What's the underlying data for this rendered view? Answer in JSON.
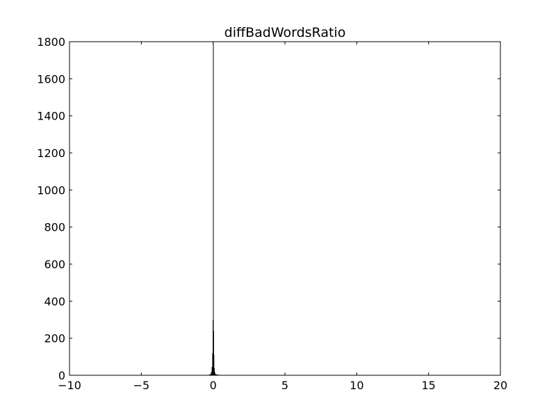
{
  "chart_data": {
    "type": "bar",
    "title": "diffBadWordsRatio",
    "xlabel": "",
    "ylabel": "",
    "xlim": [
      -10,
      20
    ],
    "ylim": [
      0,
      1800
    ],
    "xticks": [
      -10,
      -5,
      0,
      5,
      10,
      15,
      20
    ],
    "xtick_labels": [
      "−10",
      "−5",
      "0",
      "5",
      "10",
      "15",
      "20"
    ],
    "yticks": [
      0,
      200,
      400,
      600,
      800,
      1000,
      1200,
      1400,
      1600,
      1800
    ],
    "ytick_labels": [
      "0",
      "200",
      "400",
      "600",
      "800",
      "1000",
      "1200",
      "1400",
      "1600",
      "1800"
    ],
    "grid": false,
    "bar_color": "#000000",
    "bins": [
      {
        "x0": -0.35,
        "x1": -0.25,
        "value": 2
      },
      {
        "x0": -0.25,
        "x1": -0.15,
        "value": 6
      },
      {
        "x0": -0.15,
        "x1": -0.1,
        "value": 18
      },
      {
        "x0": -0.1,
        "x1": -0.06,
        "value": 45
      },
      {
        "x0": -0.06,
        "x1": -0.03,
        "value": 120
      },
      {
        "x0": -0.03,
        "x1": -0.01,
        "value": 300
      },
      {
        "x0": -0.01,
        "x1": 0.01,
        "value": 1790
      },
      {
        "x0": 0.01,
        "x1": 0.03,
        "value": 240
      },
      {
        "x0": 0.03,
        "x1": 0.06,
        "value": 110
      },
      {
        "x0": 0.06,
        "x1": 0.1,
        "value": 40
      },
      {
        "x0": 0.1,
        "x1": 0.15,
        "value": 15
      },
      {
        "x0": 0.15,
        "x1": 0.25,
        "value": 6
      },
      {
        "x0": 0.25,
        "x1": 0.4,
        "value": 3
      },
      {
        "x0": 0.4,
        "x1": 0.6,
        "value": 2
      },
      {
        "x0": 0.9,
        "x1": 1.0,
        "value": 2
      }
    ]
  }
}
